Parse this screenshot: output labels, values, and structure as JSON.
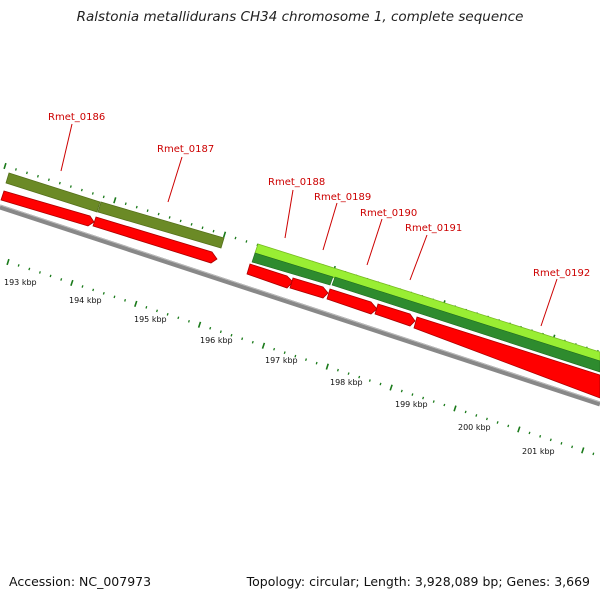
{
  "title": "Ralstonia metallidurans CH34 chromosome 1, complete sequence",
  "genes": [
    "Rmet_0186",
    "Rmet_0187",
    "Rmet_0188",
    "Rmet_0189",
    "Rmet_0190",
    "Rmet_0191",
    "Rmet_0192"
  ],
  "kbp_ticks": [
    "193 kbp",
    "194 kbp",
    "195 kbp",
    "196 kbp",
    "197 kbp",
    "198 kbp",
    "199 kbp",
    "200 kbp",
    "201 kbp"
  ],
  "colors": {
    "forward_cds": "#ff0000",
    "olive_feature": "#6b8a26",
    "light_green_feature": "#99ee33",
    "dark_green_feature": "#2e8b2e",
    "backbone": "#888888",
    "ticks": "#1a7a1a",
    "gene_label": "#cc0000"
  },
  "footer": {
    "accession": "Accession: NC_007973",
    "summary": "Topology: circular; Length: 3,928,089 bp; Genes: 3,669"
  }
}
